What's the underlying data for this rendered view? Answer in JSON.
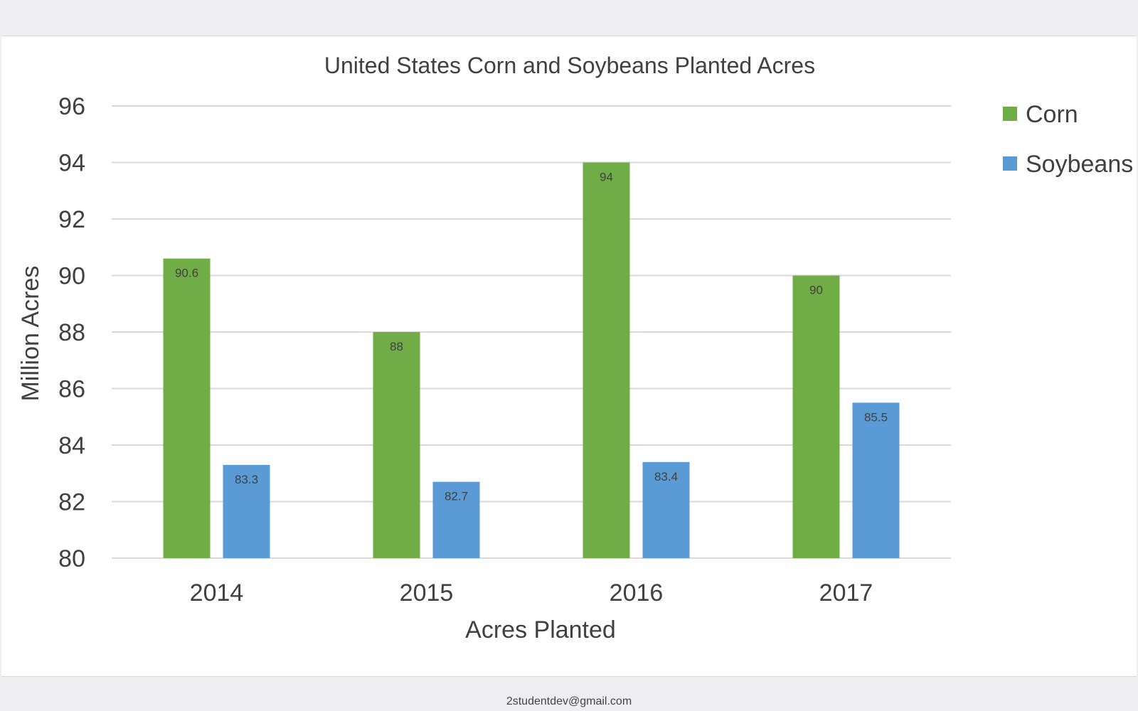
{
  "chart_data": {
    "type": "bar",
    "title": "United States Corn and Soybeans Planted Acres",
    "xlabel": "Acres Planted",
    "ylabel": "Million Acres",
    "categories": [
      "2014",
      "2015",
      "2016",
      "2017"
    ],
    "series": [
      {
        "name": "Corn",
        "color": "#70ad47",
        "values": [
          90.6,
          88,
          94,
          90
        ]
      },
      {
        "name": "Soybeans",
        "color": "#5b9bd5",
        "values": [
          83.3,
          82.7,
          83.4,
          85.5
        ]
      }
    ],
    "ylim": [
      80,
      96
    ],
    "yticks": [
      80,
      82,
      84,
      86,
      88,
      90,
      92,
      94,
      96
    ],
    "grid": true,
    "legend": "right",
    "data_labels": true
  },
  "footer": {
    "email": "2studentdev@gmail.com"
  }
}
